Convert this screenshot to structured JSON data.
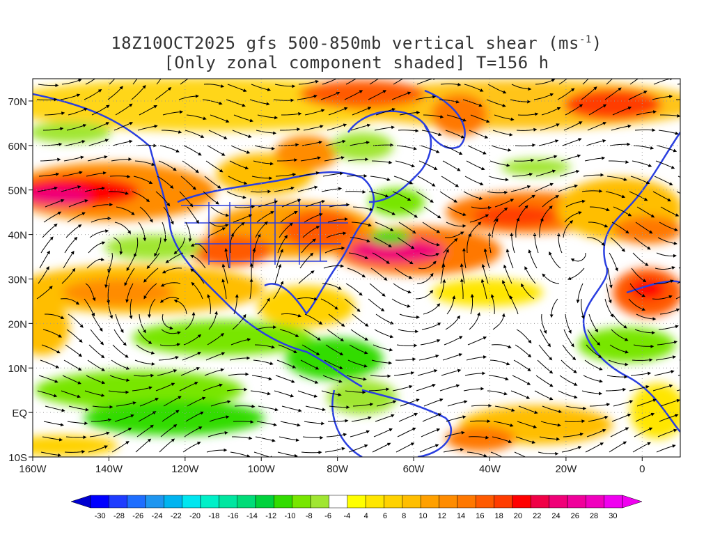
{
  "title": {
    "line1_pre": "18Z10OCT2025 gfs 500-850mb vertical shear (ms",
    "line1_sup": "-1",
    "line1_post": ")",
    "line2": "[Only zonal component shaded] T=156 h"
  },
  "map": {
    "lat_labels": [
      "70N",
      "60N",
      "50N",
      "40N",
      "30N",
      "20N",
      "10N",
      "EQ",
      "10S"
    ],
    "lon_labels": [
      "160W",
      "140W",
      "120W",
      "100W",
      "80W",
      "60W",
      "40W",
      "20W",
      "0"
    ],
    "lat_values": [
      70,
      60,
      50,
      40,
      30,
      20,
      10,
      0,
      -10
    ],
    "lon_values": [
      -160,
      -140,
      -120,
      -100,
      -80,
      -60,
      -40,
      -20,
      0
    ],
    "lat_range": [
      -10,
      75
    ],
    "lon_range": [
      -160,
      10
    ]
  },
  "colorbar": {
    "labels": [
      "-30",
      "-28",
      "-26",
      "-24",
      "-22",
      "-20",
      "-18",
      "-16",
      "-14",
      "-12",
      "-10",
      "-8",
      "-6",
      "-4",
      "4",
      "6",
      "8",
      "10",
      "12",
      "14",
      "16",
      "18",
      "20",
      "22",
      "24",
      "26",
      "28",
      "30"
    ],
    "colors": [
      "#0000ff",
      "#1e3cff",
      "#1e6eff",
      "#1e96f0",
      "#00b4f0",
      "#00e6f0",
      "#00f0c8",
      "#00e6a0",
      "#00dc78",
      "#00d23c",
      "#32dc00",
      "#78e600",
      "#a0e632",
      "#ffffff",
      "#ffff00",
      "#ffe600",
      "#ffd200",
      "#ffbe00",
      "#ffa000",
      "#ff8c00",
      "#ff7800",
      "#ff5a00",
      "#ff3c00",
      "#ff0000",
      "#f00046",
      "#f00078",
      "#f0009b",
      "#f000be",
      "#f000f0"
    ],
    "left_arrow_color": "#0000d0",
    "right_arrow_color": "#f000f0"
  },
  "colors": {
    "coast": "#2a3fe0",
    "stream": "#000000"
  }
}
